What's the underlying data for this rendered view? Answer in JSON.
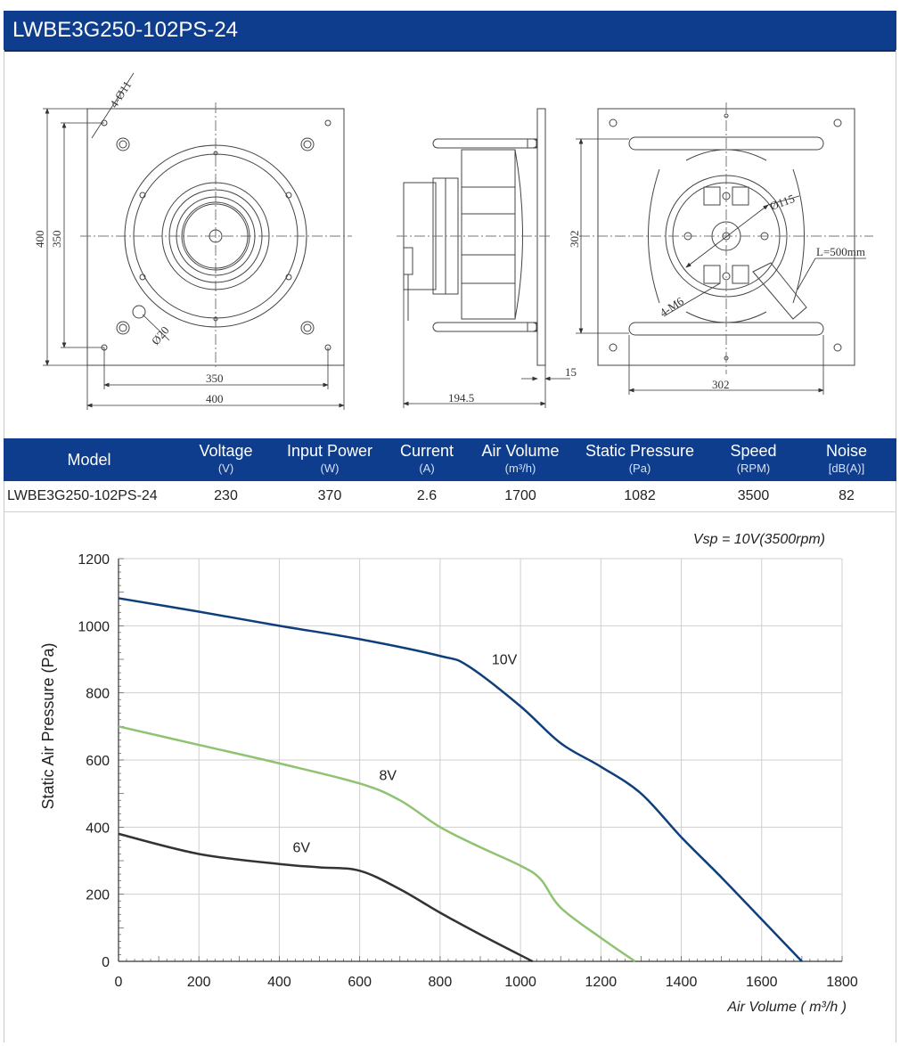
{
  "header": {
    "title": "LWBE3G250-102PS-24"
  },
  "drawings": {
    "front": {
      "hole_callout": "4-Ø11",
      "small_dia": "Ø20",
      "height_outer": "400",
      "height_inner": "350",
      "width_inner": "350",
      "width_outer": "400"
    },
    "side": {
      "depth": "194.5",
      "flange": "15"
    },
    "rear": {
      "height": "302",
      "width": "302",
      "bolt_callout": "4-M6",
      "circle_dia": "Ø115",
      "cable": "L=500mm"
    }
  },
  "table": {
    "headers": [
      {
        "label": "Model",
        "unit": ""
      },
      {
        "label": "Voltage",
        "unit": "(V)"
      },
      {
        "label": "Input Power",
        "unit": "(W)"
      },
      {
        "label": "Current",
        "unit": "(A)"
      },
      {
        "label": "Air Volume",
        "unit": "(m³/h)"
      },
      {
        "label": "Static Pressure",
        "unit": "(Pa)"
      },
      {
        "label": "Speed",
        "unit": "(RPM)"
      },
      {
        "label": "Noise",
        "unit": "[dB(A)]"
      }
    ],
    "row": [
      "LWBE3G250-102PS-24",
      "230",
      "370",
      "2.6",
      "1700",
      "1082",
      "3500",
      "82"
    ]
  },
  "chart_data": {
    "type": "line",
    "annotation": "Vsp = 10V(3500rpm)",
    "xlabel": "Air Volume ( m³/h )",
    "ylabel": "Static Air Pressure  (Pa)",
    "xlim": [
      0,
      1800
    ],
    "ylim": [
      0,
      1200
    ],
    "xticks": [
      0,
      200,
      400,
      600,
      800,
      1000,
      1200,
      1400,
      1600,
      1800
    ],
    "yticks": [
      0,
      200,
      400,
      600,
      800,
      1000,
      1200
    ],
    "grid": true,
    "series": [
      {
        "name": "10V",
        "color": "#0f3f7a",
        "x": [
          0,
          200,
          400,
          600,
          800,
          870,
          1000,
          1100,
          1200,
          1300,
          1400,
          1500,
          1600,
          1700
        ],
        "y": [
          1082,
          1042,
          1000,
          960,
          910,
          880,
          760,
          650,
          580,
          500,
          370,
          250,
          125,
          0
        ]
      },
      {
        "name": "8V",
        "color": "#8fc372",
        "x": [
          0,
          200,
          400,
          600,
          700,
          800,
          900,
          1000,
          1050,
          1100,
          1200,
          1285
        ],
        "y": [
          700,
          645,
          590,
          530,
          480,
          400,
          340,
          285,
          245,
          160,
          70,
          0
        ]
      },
      {
        "name": "6V",
        "color": "#333333",
        "x": [
          0,
          200,
          400,
          500,
          600,
          700,
          800,
          900,
          1030
        ],
        "y": [
          380,
          320,
          290,
          280,
          270,
          215,
          145,
          80,
          0
        ]
      }
    ],
    "series_labels": [
      {
        "text": "10V",
        "x": 960,
        "y": 885
      },
      {
        "text": "8V",
        "x": 670,
        "y": 540
      },
      {
        "text": "6V",
        "x": 455,
        "y": 325
      }
    ]
  }
}
